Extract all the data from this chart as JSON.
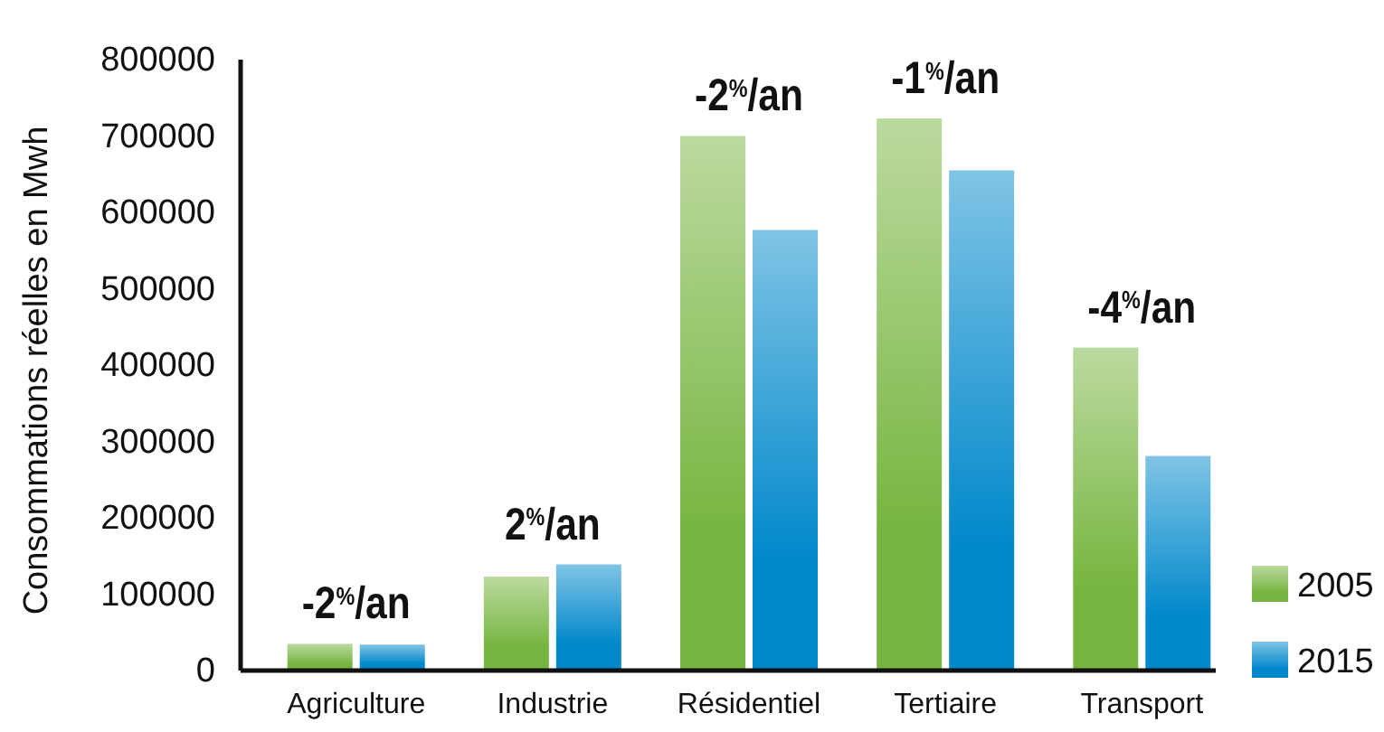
{
  "chart_data": {
    "type": "bar",
    "ylabel": "Consommations réelles en Mwh",
    "categories": [
      "Agriculture",
      "Industrie",
      "Résidentiel",
      "Tertiaire",
      "Transport"
    ],
    "series": [
      {
        "name": "2005",
        "color": "#76b53f",
        "values": [
          35000,
          123000,
          700000,
          723000,
          423000
        ]
      },
      {
        "name": "2015",
        "color": "#0088cb",
        "values": [
          34000,
          139000,
          577000,
          655000,
          281000
        ]
      }
    ],
    "ylim": [
      0,
      800000
    ],
    "yticks": [
      0,
      100000,
      200000,
      300000,
      400000,
      500000,
      600000,
      700000,
      800000
    ],
    "grid": false,
    "legend": "bottom right",
    "annotations": [
      {
        "text": "-2$^{%}$/an",
        "x": "Agriculture",
        "y": 35000
      },
      {
        "text": "2$^{%}$/an",
        "x": "Industrie",
        "y": 139000
      },
      {
        "text": "-2$^{%}$/an",
        "x": "Résidentiel",
        "y": 700000
      },
      {
        "text": "-1$^{%}$/an",
        "x": "Tertiaire",
        "y": 723000
      },
      {
        "text": "-4$^{%}$/an",
        "x": "Transport",
        "y": 423000
      }
    ]
  }
}
